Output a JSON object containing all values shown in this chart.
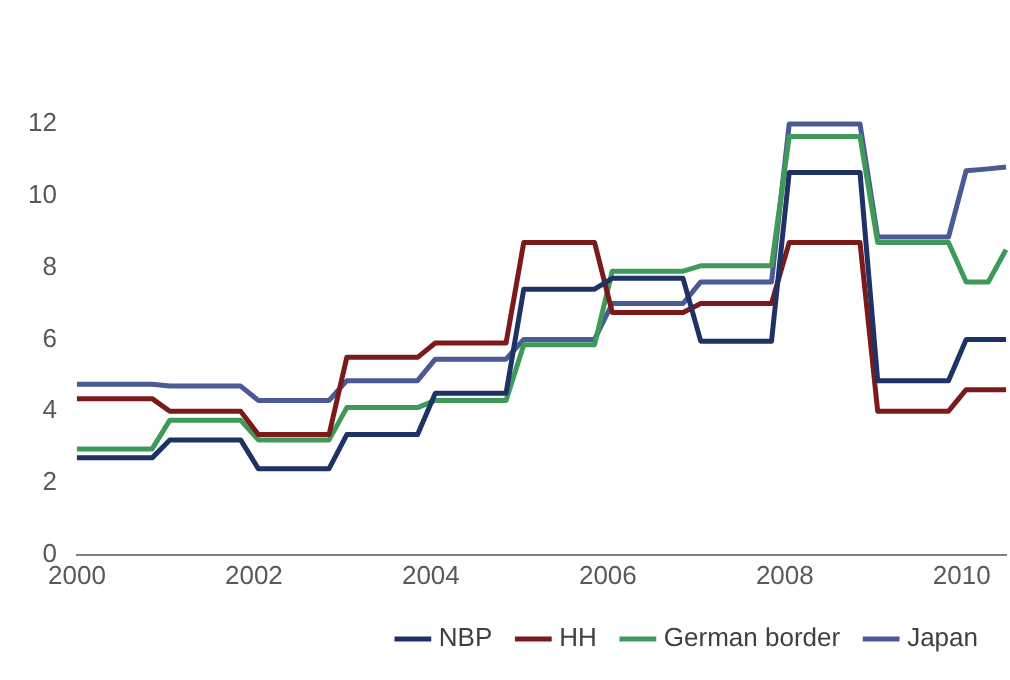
{
  "chart_data": {
    "type": "line",
    "x": [
      2000,
      2000.85,
      2001.05,
      2001.85,
      2002.05,
      2002.85,
      2003.05,
      2003.85,
      2004.05,
      2004.85,
      2005.05,
      2005.85,
      2006.05,
      2006.85,
      2007.05,
      2007.85,
      2008.05,
      2008.85,
      2009.05,
      2009.85,
      2010.05,
      2010.3,
      2010.5
    ],
    "series": [
      {
        "name": "NBP",
        "color": "#1f3264",
        "values": [
          2.7,
          2.7,
          3.2,
          3.2,
          2.4,
          2.4,
          3.35,
          3.35,
          4.5,
          4.5,
          7.4,
          7.4,
          7.7,
          7.7,
          5.95,
          5.95,
          10.65,
          10.65,
          4.85,
          4.85,
          6.0,
          6.0,
          6.0
        ]
      },
      {
        "name": "HH",
        "color": "#7b1a1a",
        "values": [
          4.35,
          4.35,
          4.0,
          4.0,
          3.35,
          3.35,
          5.5,
          5.5,
          5.9,
          5.9,
          8.7,
          8.7,
          6.75,
          6.75,
          7.0,
          7.0,
          8.7,
          8.7,
          4.0,
          4.0,
          4.6,
          4.6,
          4.6
        ]
      },
      {
        "name": "German border",
        "color": "#3f9a5a",
        "values": [
          2.95,
          2.95,
          3.75,
          3.75,
          3.2,
          3.2,
          4.1,
          4.1,
          4.3,
          4.3,
          5.85,
          5.85,
          7.9,
          7.9,
          8.05,
          8.05,
          11.65,
          11.65,
          8.7,
          8.7,
          7.6,
          7.6,
          8.5
        ]
      },
      {
        "name": "Japan",
        "color": "#4a5a94",
        "values": [
          4.75,
          4.75,
          4.7,
          4.7,
          4.3,
          4.3,
          4.85,
          4.85,
          5.45,
          5.45,
          6.0,
          6.0,
          7.0,
          7.0,
          7.6,
          7.6,
          12.0,
          12.0,
          8.85,
          8.85,
          10.7,
          10.75,
          10.8
        ]
      }
    ],
    "xlim": [
      2000,
      2010.5
    ],
    "xticks": [
      2000,
      2002,
      2004,
      2006,
      2008,
      2010
    ],
    "ylim": [
      0,
      12
    ],
    "yticks": [
      0,
      2,
      4,
      6,
      8,
      10,
      12
    ],
    "grid": false,
    "legend": "bottom right",
    "marker": "none",
    "line_style": "solid"
  }
}
